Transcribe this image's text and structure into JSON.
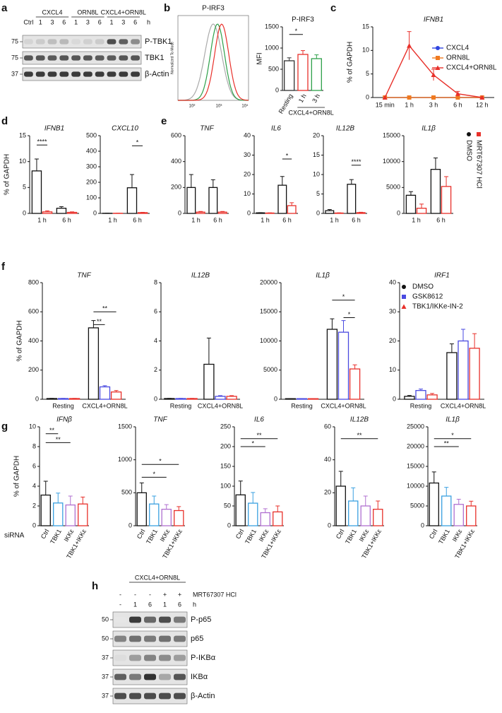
{
  "panel_labels": [
    "a",
    "b",
    "c",
    "d",
    "e",
    "f",
    "g",
    "h"
  ],
  "flow": {
    "title": "P-IRF3",
    "ylabel": "Normalized To Mode",
    "xtick_labels": [
      "10²",
      "10³",
      "10⁴"
    ]
  },
  "blots": {
    "a": {
      "groups": [
        "CXCL4",
        "ORN8L",
        "CXCL4+ORN8L"
      ],
      "lanes": [
        "Ctrl",
        "1",
        "3",
        "6",
        "1",
        "3",
        "6",
        "1",
        "3",
        "6"
      ],
      "unit": "h",
      "rows": [
        "P-TBK1",
        "TBK1",
        "β-Actin"
      ],
      "mw": [
        "75",
        "75",
        "37"
      ]
    },
    "h": {
      "groups": [
        "CXCL4+ORN8L"
      ],
      "treatment": "MRT67307 HCl",
      "treatment_lanes": [
        "-",
        "-",
        "-",
        "+",
        "+"
      ],
      "lanes": [
        "-",
        "1",
        "6",
        "1",
        "6"
      ],
      "unit": "h",
      "rows": [
        "P-p65",
        "p65",
        "P-IKBα",
        "IKBα",
        "β-Actin"
      ],
      "mw": [
        "50",
        "50",
        "37",
        "37",
        "37"
      ]
    }
  },
  "chart_data": [
    {
      "type": "bar",
      "title": "P-IRF3",
      "ylabel": "MFI",
      "categories": [
        "Resting",
        "1 h",
        "3 h"
      ],
      "group_label": "CXCL4+ORN8L",
      "series": [
        {
          "colors": [
            "#333333",
            "#e8302a",
            "#2ea04a"
          ],
          "values": [
            700,
            850,
            750
          ],
          "errors": [
            70,
            90,
            90
          ]
        }
      ],
      "ylim": [
        0,
        1500
      ],
      "yticks": [
        0,
        500,
        1000,
        1500
      ],
      "annotations": [
        "*"
      ]
    },
    {
      "type": "line",
      "title": "IFNB1",
      "ylabel": "% of GAPDH",
      "categories": [
        "15 min",
        "1 h",
        "3 h",
        "6 h",
        "12 h"
      ],
      "series": [
        {
          "name": "CXCL4",
          "color": "#2f45e0",
          "values": [
            0,
            0,
            0,
            0,
            0
          ]
        },
        {
          "name": "ORN8L",
          "color": "#f07a20",
          "values": [
            0,
            0,
            0,
            0,
            0
          ]
        },
        {
          "name": "CXCL4+ORN8L",
          "color": "#e8302a",
          "values": [
            0,
            11,
            4.8,
            0.8,
            0
          ],
          "errors": [
            0,
            3,
            1.2,
            0.5,
            0
          ]
        }
      ],
      "ylim": [
        0,
        15
      ],
      "yticks": [
        0,
        5,
        10,
        15
      ],
      "legend": "right"
    },
    {
      "type": "bar",
      "title": "IFNB1",
      "ylabel": "% of GAPDH",
      "categories": [
        "1 h",
        "6 h"
      ],
      "series": [
        {
          "color": "#111111",
          "values": [
            8.2,
            1.0
          ],
          "errors": [
            2.3,
            0.3
          ]
        },
        {
          "color": "#e8302a",
          "values": [
            0.3,
            0.2
          ],
          "errors": [
            0.2,
            0.1
          ]
        }
      ],
      "ylim": [
        0,
        15
      ],
      "yticks": [
        0,
        5,
        10,
        15
      ],
      "annotations": [
        "****"
      ]
    },
    {
      "type": "bar",
      "title": "CXCL10",
      "categories": [
        "1 h",
        "6 h"
      ],
      "series": [
        {
          "color": "#111111",
          "values": [
            1,
            165
          ],
          "errors": [
            0.5,
            85
          ]
        },
        {
          "color": "#e8302a",
          "values": [
            1,
            5
          ],
          "errors": [
            0.5,
            2
          ]
        }
      ],
      "ylim": [
        0,
        500
      ],
      "yticks": [
        0,
        100,
        200,
        300,
        400,
        500
      ],
      "annotations": [
        "*"
      ]
    },
    {
      "type": "bar",
      "title": "TNF",
      "categories": [
        "1 h",
        "6 h"
      ],
      "series": [
        {
          "color": "#111111",
          "values": [
            200,
            200
          ],
          "errors": [
            100,
            60
          ]
        },
        {
          "color": "#e8302a",
          "values": [
            10,
            10
          ],
          "errors": [
            5,
            5
          ]
        }
      ],
      "ylim": [
        0,
        600
      ],
      "yticks": [
        0,
        200,
        400,
        600
      ]
    },
    {
      "type": "bar",
      "title": "IL6",
      "categories": [
        "1 h",
        "6 h"
      ],
      "series": [
        {
          "color": "#111111",
          "values": [
            0.3,
            14.5
          ],
          "errors": [
            0.1,
            4.5
          ]
        },
        {
          "color": "#e8302a",
          "values": [
            0.2,
            4
          ],
          "errors": [
            0.1,
            1.5
          ]
        }
      ],
      "ylim": [
        0,
        40
      ],
      "yticks": [
        0,
        10,
        20,
        30,
        40
      ],
      "annotations": [
        "*"
      ]
    },
    {
      "type": "bar",
      "title": "IL12B",
      "categories": [
        "1 h",
        "6 h"
      ],
      "series": [
        {
          "color": "#111111",
          "values": [
            0.7,
            7.5
          ],
          "errors": [
            0.3,
            1.2
          ]
        },
        {
          "color": "#e8302a",
          "values": [
            0.1,
            0.2
          ],
          "errors": [
            0.05,
            0.1
          ]
        }
      ],
      "ylim": [
        0,
        20
      ],
      "yticks": [
        0,
        5,
        10,
        15,
        20
      ],
      "annotations": [
        "****"
      ]
    },
    {
      "type": "bar",
      "title": "IL1β",
      "categories": [
        "1 h",
        "6 h"
      ],
      "series": [
        {
          "name": "DMSO",
          "color": "#111111",
          "values": [
            3500,
            8500
          ],
          "errors": [
            700,
            2200
          ]
        },
        {
          "name": "MRT67307 HCl",
          "color": "#e8302a",
          "values": [
            1000,
            5200
          ],
          "errors": [
            800,
            1900
          ]
        }
      ],
      "ylim": [
        0,
        15000
      ],
      "yticks": [
        0,
        5000,
        10000,
        15000
      ],
      "legend": "right"
    },
    {
      "type": "bar",
      "title": "TNF",
      "ylabel": "% of GAPDH",
      "categories": [
        "Resting",
        "CXCL4+ORN8L"
      ],
      "series": [
        {
          "color": "#111111",
          "values": [
            5,
            490
          ],
          "errors": [
            1,
            50
          ]
        },
        {
          "color": "#4a4ae0",
          "values": [
            5,
            85
          ],
          "errors": [
            1,
            8
          ]
        },
        {
          "color": "#e8302a",
          "values": [
            5,
            50
          ],
          "errors": [
            1,
            10
          ]
        }
      ],
      "ylim": [
        0,
        800
      ],
      "yticks": [
        0,
        200,
        400,
        600,
        800
      ],
      "annotations": [
        "**",
        "**"
      ]
    },
    {
      "type": "bar",
      "title": "IL12B",
      "categories": [
        "Resting",
        "CXCL4+ORN8L"
      ],
      "series": [
        {
          "color": "#111111",
          "values": [
            0.05,
            2.4
          ],
          "errors": [
            0.01,
            1.8
          ]
        },
        {
          "color": "#4a4ae0",
          "values": [
            0.05,
            0.2
          ],
          "errors": [
            0.01,
            0.05
          ]
        },
        {
          "color": "#e8302a",
          "values": [
            0.05,
            0.2
          ],
          "errors": [
            0.01,
            0.05
          ]
        }
      ],
      "ylim": [
        0,
        8
      ],
      "yticks": [
        0,
        2,
        4,
        6,
        8
      ]
    },
    {
      "type": "bar",
      "title": "IL1β",
      "categories": [
        "Resting",
        "CXCL4+ORN8L"
      ],
      "series": [
        {
          "color": "#111111",
          "values": [
            100,
            12000
          ],
          "errors": [
            20,
            1800
          ]
        },
        {
          "color": "#4a4ae0",
          "values": [
            100,
            11500
          ],
          "errors": [
            20,
            2000
          ]
        },
        {
          "color": "#e8302a",
          "values": [
            100,
            5200
          ],
          "errors": [
            20,
            700
          ]
        }
      ],
      "ylim": [
        0,
        20000
      ],
      "yticks": [
        0,
        5000,
        10000,
        15000,
        20000
      ],
      "annotations": [
        "*",
        "*"
      ]
    },
    {
      "type": "bar",
      "title": "IRF1",
      "categories": [
        "Resting",
        "CXCL4+ORN8L"
      ],
      "series": [
        {
          "name": "DMSO",
          "color": "#111111",
          "values": [
            1,
            16
          ],
          "errors": [
            0.3,
            3
          ]
        },
        {
          "name": "GSK8612",
          "color": "#4a4ae0",
          "values": [
            3,
            20
          ],
          "errors": [
            0.5,
            4
          ]
        },
        {
          "name": "TBK1/IKKe-IN-2",
          "color": "#e8302a",
          "values": [
            1.5,
            17.5
          ],
          "errors": [
            0.5,
            5
          ]
        }
      ],
      "ylim": [
        0,
        40
      ],
      "yticks": [
        0,
        10,
        20,
        30,
        40
      ],
      "legend": "upper left"
    },
    {
      "type": "bar",
      "title": "IFNβ",
      "ylabel": "% of GAPDH",
      "xlabel": "siRNA",
      "categories": [
        "Ctrl",
        "TBK1",
        "IKKε",
        "TBK1+IKKε"
      ],
      "series": [
        {
          "colors": [
            "#111111",
            "#3aa0e0",
            "#b070d0",
            "#e8302a"
          ],
          "values": [
            3.1,
            2.3,
            2.1,
            2.2
          ],
          "errors": [
            1.4,
            1.0,
            0.9,
            0.7
          ]
        }
      ],
      "ylim": [
        0,
        10
      ],
      "yticks": [
        0,
        2,
        4,
        6,
        8,
        10
      ],
      "annotations": [
        "**",
        "**"
      ]
    },
    {
      "type": "bar",
      "title": "TNF",
      "categories": [
        "Ctrl",
        "TBK1",
        "IKKε",
        "TBK1+IKKε"
      ],
      "series": [
        {
          "colors": [
            "#111111",
            "#3aa0e0",
            "#b070d0",
            "#e8302a"
          ],
          "values": [
            500,
            330,
            250,
            230
          ],
          "errors": [
            150,
            120,
            70,
            60
          ]
        }
      ],
      "ylim": [
        0,
        1500
      ],
      "yticks": [
        0,
        500,
        1000,
        1500
      ],
      "annotations": [
        "*",
        "*"
      ]
    },
    {
      "type": "bar",
      "title": "IL6",
      "categories": [
        "Ctrl",
        "TBK1",
        "IKKε",
        "TBK1+IKKε"
      ],
      "series": [
        {
          "colors": [
            "#111111",
            "#3aa0e0",
            "#b070d0",
            "#e8302a"
          ],
          "values": [
            78,
            57,
            33,
            35
          ],
          "errors": [
            35,
            27,
            10,
            15
          ]
        }
      ],
      "ylim": [
        0,
        250
      ],
      "yticks": [
        0,
        50,
        100,
        150,
        200,
        250
      ],
      "annotations": [
        "**",
        "*"
      ]
    },
    {
      "type": "bar",
      "title": "IL12B",
      "categories": [
        "Ctrl",
        "TBK1",
        "IKKε",
        "TBK1+IKKε"
      ],
      "series": [
        {
          "colors": [
            "#111111",
            "#3aa0e0",
            "#b070d0",
            "#e8302a"
          ],
          "values": [
            24,
            15,
            12,
            10
          ],
          "errors": [
            9,
            8,
            6,
            5
          ]
        }
      ],
      "ylim": [
        0,
        60
      ],
      "yticks": [
        0,
        20,
        40,
        60
      ],
      "annotations": [
        "**"
      ]
    },
    {
      "type": "bar",
      "title": "IL1β",
      "categories": [
        "Ctrl",
        "TBK1",
        "IKKε",
        "TBK1+IKKε"
      ],
      "series": [
        {
          "colors": [
            "#111111",
            "#3aa0e0",
            "#b070d0",
            "#e8302a"
          ],
          "values": [
            10800,
            7500,
            5400,
            5000
          ],
          "errors": [
            2800,
            2200,
            1300,
            1200
          ]
        }
      ],
      "ylim": [
        0,
        25000
      ],
      "yticks": [
        0,
        5000,
        10000,
        15000,
        20000,
        25000
      ],
      "annotations": [
        "*",
        "**"
      ]
    }
  ]
}
